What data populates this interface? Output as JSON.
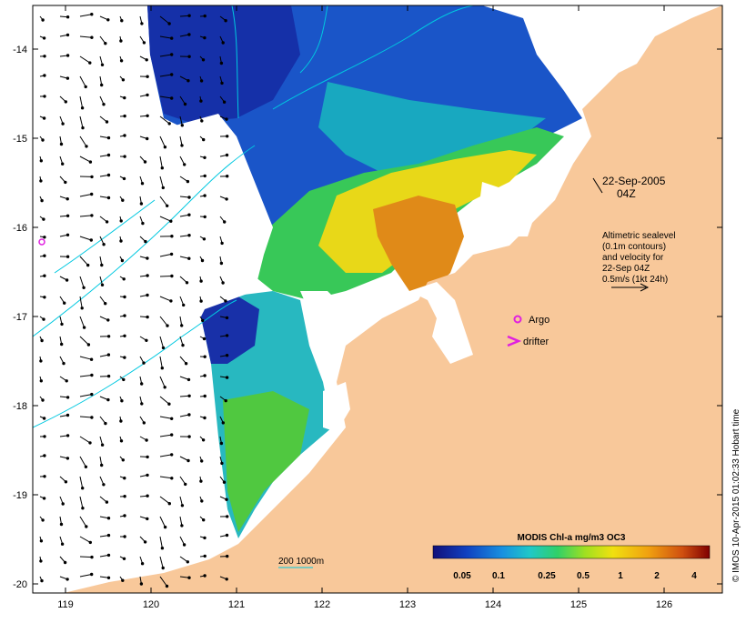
{
  "map": {
    "lat_ticks": [
      "-14",
      "-15",
      "-16",
      "-17",
      "-18",
      "-19",
      "-20"
    ],
    "lon_ticks": [
      "119",
      "120",
      "121",
      "122",
      "123",
      "124",
      "125",
      "126"
    ],
    "date_label": "22-Sep-2005",
    "time_label": "04Z",
    "legend_lines": [
      "Altimetric sealevel",
      "(0.1m contours)",
      "and velocity for",
      "22-Sep 04Z",
      "0.5m/s (1kt 24h)"
    ],
    "argo_label": "Argo",
    "drifter_label": "drifter",
    "scale_label": "200  1000m",
    "colorbar": {
      "title": "MODIS Chl-a mg/m3 OC3",
      "ticks": [
        "0.05",
        "0.1",
        "0.25",
        "0.5",
        "1",
        "2",
        "4"
      ],
      "colors": [
        "#1a2a9a",
        "#0a5ad0",
        "#1a9ae0",
        "#20c8c0",
        "#30d070",
        "#90e020",
        "#e8e010",
        "#f0a010",
        "#e06010",
        "#c02020",
        "#800000"
      ]
    },
    "credit": "© IMOS 10-Apr-2015 01:02:33 Hobart time",
    "colors": {
      "land": "#f8c89a",
      "contour": "#00c8e0",
      "marker": "#e020e0"
    }
  }
}
